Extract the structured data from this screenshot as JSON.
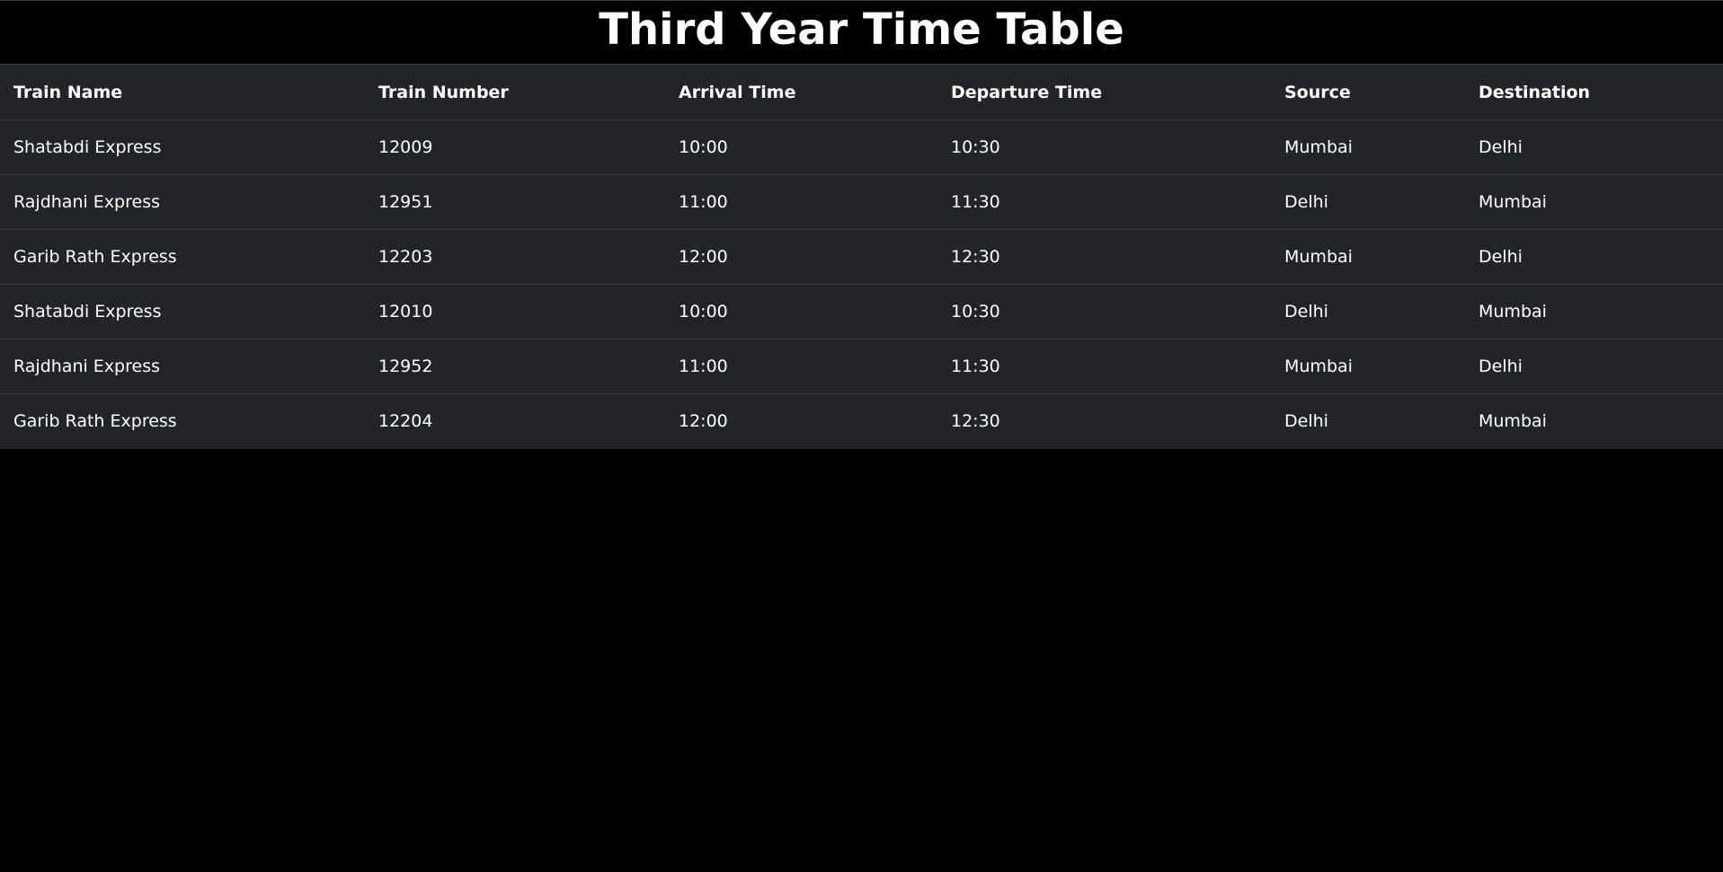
{
  "page": {
    "title": "Third Year Time Table"
  },
  "table": {
    "headers": [
      "Train Name",
      "Train Number",
      "Arrival Time",
      "Departure Time",
      "Source",
      "Destination"
    ],
    "rows": [
      [
        "Shatabdi Express",
        "12009",
        "10:00",
        "10:30",
        "Mumbai",
        "Delhi"
      ],
      [
        "Rajdhani Express",
        "12951",
        "11:00",
        "11:30",
        "Delhi",
        "Mumbai"
      ],
      [
        "Garib Rath Express",
        "12203",
        "12:00",
        "12:30",
        "Mumbai",
        "Delhi"
      ],
      [
        "Shatabdi Express",
        "12010",
        "10:00",
        "10:30",
        "Delhi",
        "Mumbai"
      ],
      [
        "Rajdhani Express",
        "12952",
        "11:00",
        "11:30",
        "Mumbai",
        "Delhi"
      ],
      [
        "Garib Rath Express",
        "12204",
        "12:00",
        "12:30",
        "Delhi",
        "Mumbai"
      ]
    ]
  },
  "colors": {
    "page_background": "#000000",
    "table_background": "#212529",
    "row_border": "#373b3e",
    "text": "#ffffff"
  }
}
